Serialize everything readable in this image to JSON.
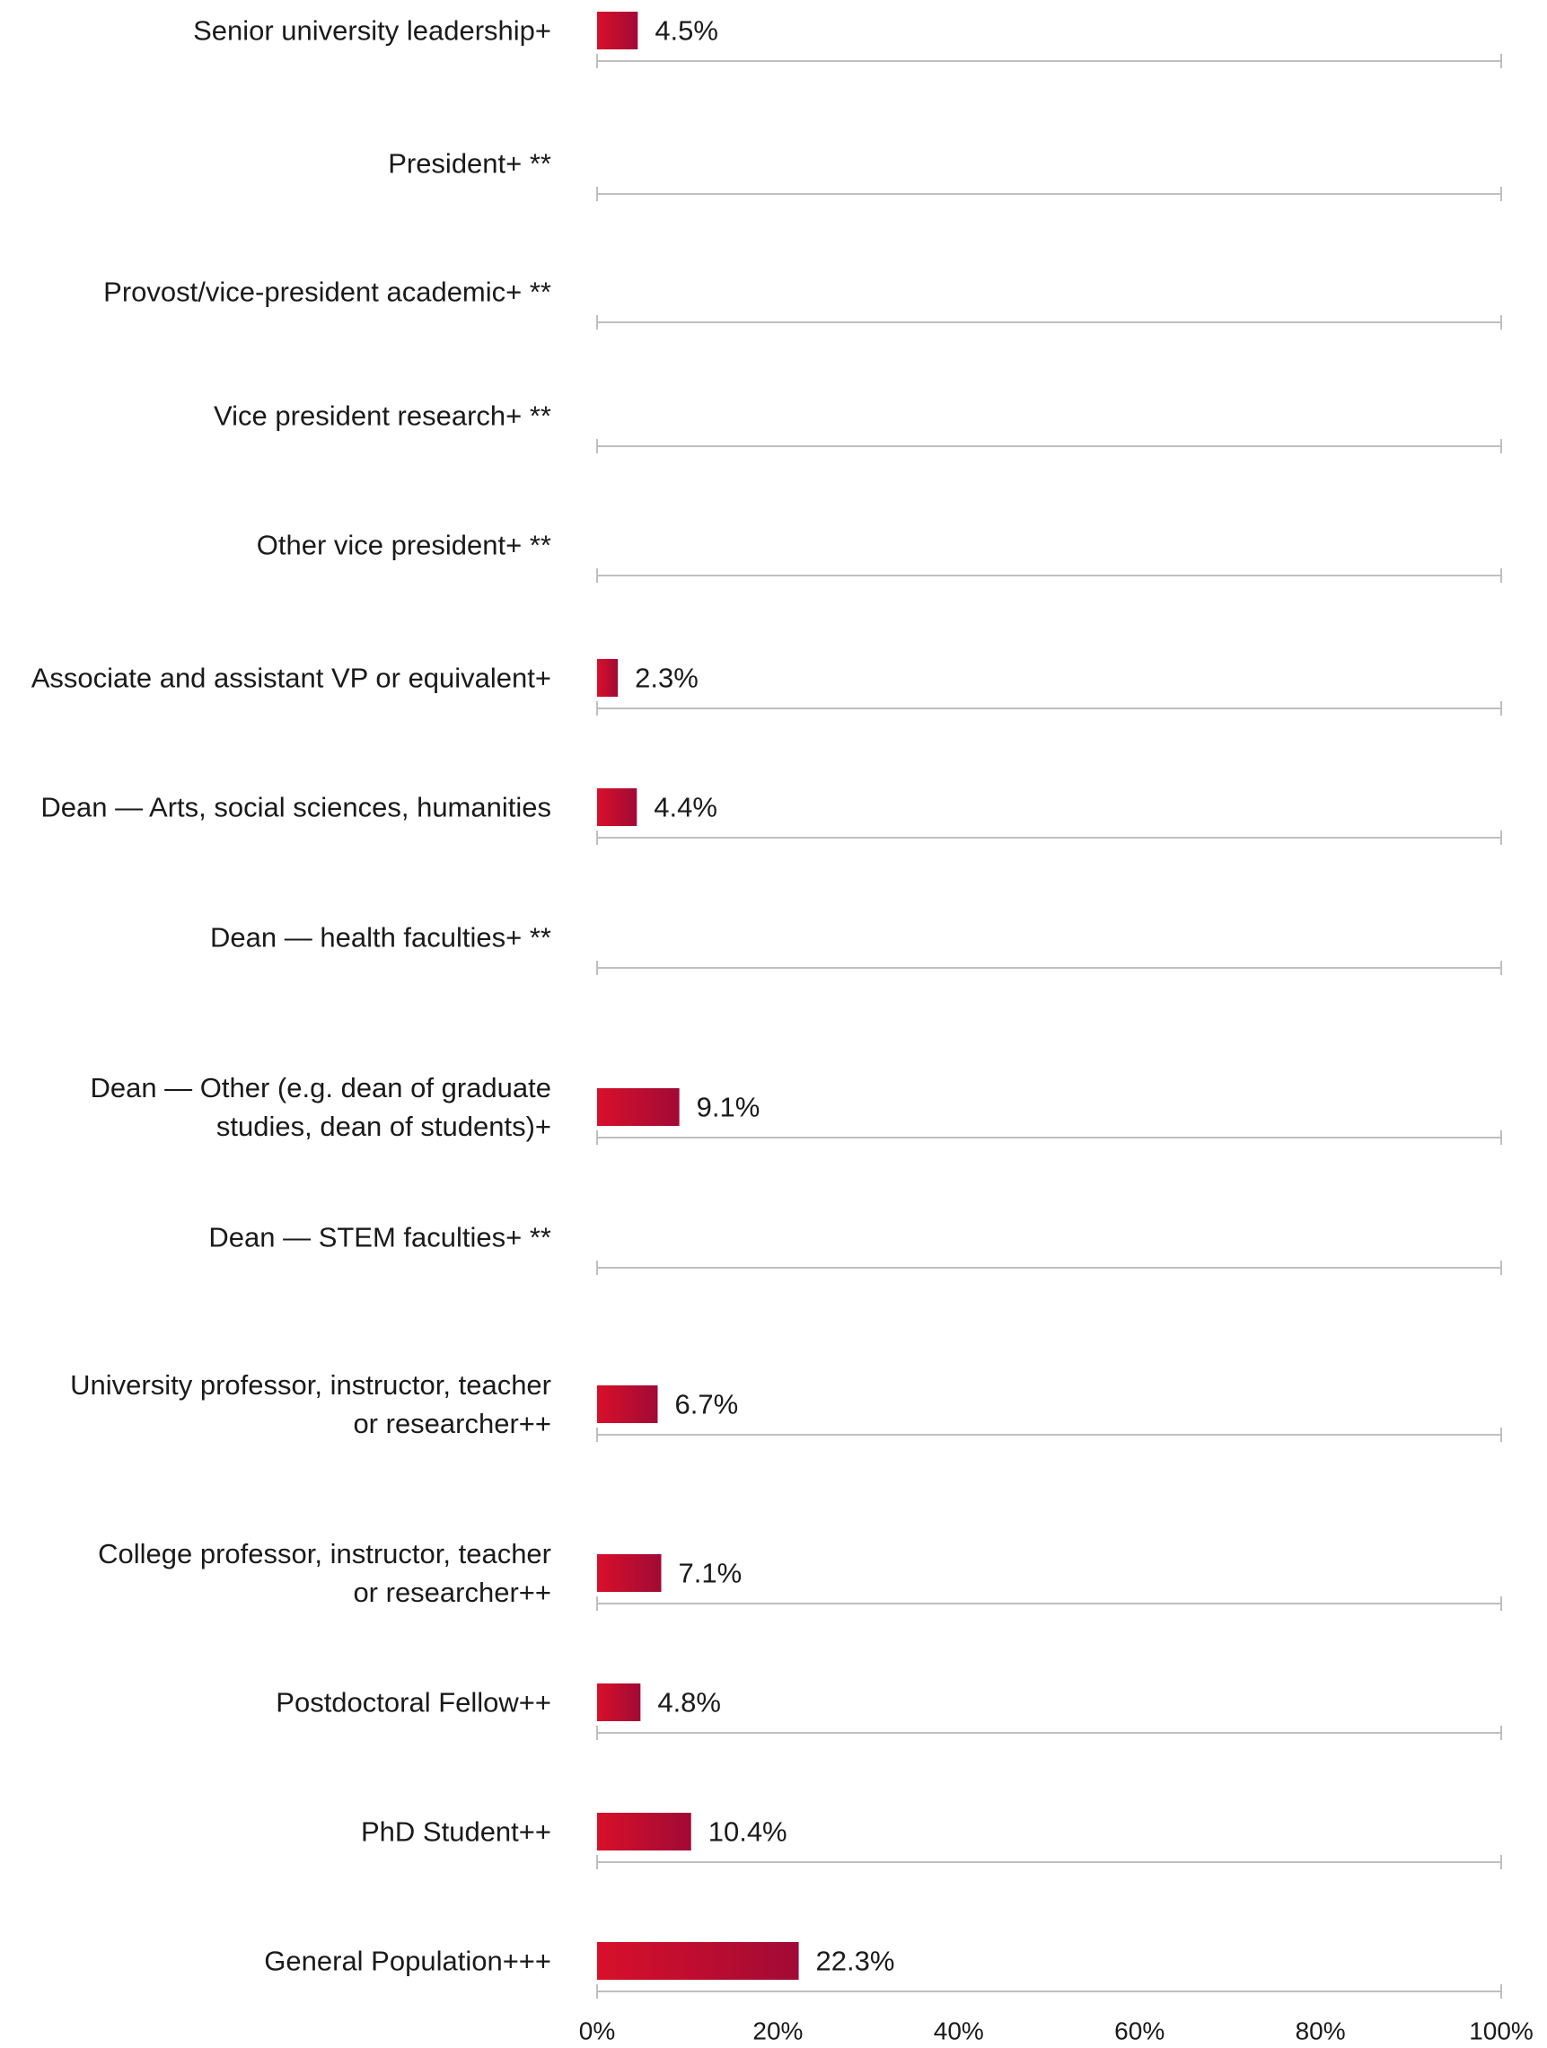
{
  "chart_data": {
    "type": "bar",
    "orientation": "horizontal",
    "categories": [
      "Senior university leadership+",
      "President+ **",
      "Provost/vice-president academic+ **",
      "Vice president research+ **",
      "Other vice president+ **",
      "Associate and assistant VP or equivalent+",
      "Dean — Arts, social sciences, humanities",
      "Dean — health faculties+ **",
      "Dean — Other (e.g. dean of graduate studies, dean of students)+",
      "Dean — STEM faculties+ **",
      "University professor, instructor, teacher or researcher++",
      "College professor, instructor, teacher or researcher++",
      "Postdoctoral Fellow++",
      "PhD Student++",
      "General Population+++"
    ],
    "category_lines": [
      [
        "Senior university leadership+"
      ],
      [
        "President+ **"
      ],
      [
        "Provost/vice-president academic+ **"
      ],
      [
        "Vice president research+ **"
      ],
      [
        "Other vice president+ **"
      ],
      [
        "Associate and assistant VP or equivalent+"
      ],
      [
        "Dean — Arts, social sciences, humanities"
      ],
      [
        "Dean — health faculties+ **"
      ],
      [
        "Dean — Other (e.g. dean of graduate",
        "studies, dean of students)+"
      ],
      [
        "Dean — STEM faculties+ **"
      ],
      [
        "University professor, instructor, teacher",
        "or researcher++"
      ],
      [
        "College professor, instructor, teacher",
        "or researcher++"
      ],
      [
        "Postdoctoral Fellow++"
      ],
      [
        "PhD Student++"
      ],
      [
        "General Population+++"
      ]
    ],
    "values": [
      4.5,
      null,
      null,
      null,
      null,
      2.3,
      4.4,
      null,
      9.1,
      null,
      6.7,
      7.1,
      4.8,
      10.4,
      22.3
    ],
    "value_labels": [
      "4.5%",
      "",
      "",
      "",
      "",
      "2.3%",
      "4.4%",
      "",
      "9.1%",
      "",
      "6.7%",
      "7.1%",
      "4.8%",
      "10.4%",
      "22.3%"
    ],
    "x_ticks": [
      0,
      20,
      40,
      60,
      80,
      100
    ],
    "x_tick_labels": [
      "0%",
      "20%",
      "40%",
      "60%",
      "80%",
      "100%"
    ],
    "xlim": [
      0,
      100
    ],
    "title": "",
    "xlabel": "",
    "ylabel": "",
    "grid": false,
    "colors": {
      "bar_start": "#d8102a",
      "bar_end": "#a10a36",
      "axis_line": "#bfbfbf",
      "text": "#1a1a1a"
    }
  }
}
